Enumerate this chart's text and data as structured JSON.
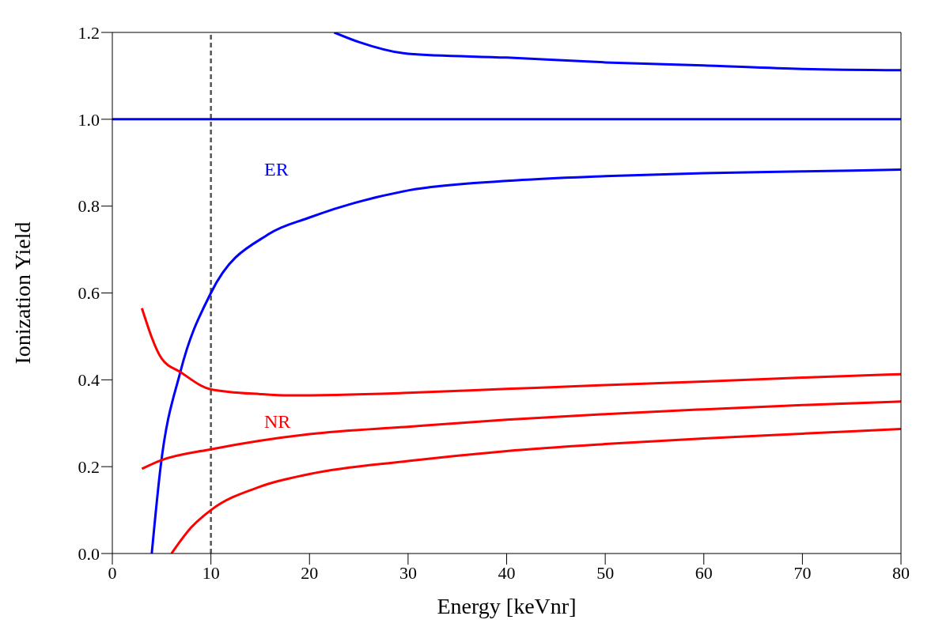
{
  "chart_data": {
    "type": "line",
    "xlabel": "Energy [keVnr]",
    "ylabel": "Ionization Yield",
    "xlim": [
      0,
      80
    ],
    "ylim": [
      0,
      1.2
    ],
    "xticks": [
      0,
      10,
      20,
      30,
      40,
      50,
      60,
      70,
      80
    ],
    "yticks": [
      {
        "value": 0,
        "label": "0.0"
      },
      {
        "value": 0.2,
        "label": "0.2"
      },
      {
        "value": 0.4,
        "label": "0.4"
      },
      {
        "value": 0.6,
        "label": "0.6"
      },
      {
        "value": 0.8,
        "label": "0.8"
      },
      {
        "value": 1,
        "label": "1.0"
      },
      {
        "value": 1.2,
        "label": "1.2"
      }
    ],
    "grid": false,
    "marker": "none",
    "line_style": "solid",
    "series": [
      {
        "color": "#0000ff",
        "x": [
          22.5,
          25,
          30,
          40,
          50,
          60,
          70,
          80
        ],
        "values": [
          1.2,
          1.178,
          1.151,
          1.142,
          1.131,
          1.124,
          1.116,
          1.113
        ]
      },
      {
        "color": "#0000ff",
        "x": [
          0,
          80
        ],
        "values": [
          1.0,
          1.0
        ]
      },
      {
        "color": "#0000ff",
        "x": [
          4,
          4.9,
          6.9,
          10,
          15.9,
          19.9,
          30,
          40,
          50,
          60,
          70,
          80
        ],
        "values": [
          0,
          0.2,
          0.418,
          0.6,
          0.736,
          0.773,
          0.836,
          0.858,
          0.869,
          0.876,
          0.88,
          0.884
        ]
      },
      {
        "color": "#ff0000",
        "x": [
          3,
          5,
          6.9,
          10,
          15,
          18,
          30,
          40,
          50,
          60,
          70,
          80
        ],
        "values": [
          0.565,
          0.449,
          0.418,
          0.378,
          0.367,
          0.364,
          0.37,
          0.379,
          0.388,
          0.396,
          0.405,
          0.413
        ]
      },
      {
        "color": "#ff0000",
        "x": [
          3,
          5,
          10,
          20,
          30,
          40,
          50,
          60,
          70,
          80
        ],
        "values": [
          0.195,
          0.215,
          0.24,
          0.275,
          0.292,
          0.308,
          0.321,
          0.332,
          0.342,
          0.35
        ]
      },
      {
        "color": "#ff0000",
        "x": [
          6,
          8,
          10,
          15,
          20,
          30,
          40,
          50,
          60,
          70,
          80
        ],
        "values": [
          0,
          0.06,
          0.1,
          0.154,
          0.183,
          0.213,
          0.236,
          0.252,
          0.265,
          0.276,
          0.287
        ]
      }
    ],
    "ref_lines": [
      {
        "axis": "x",
        "value": 10,
        "color": "#555555",
        "line_style": "dashed"
      }
    ],
    "annotations": [
      "ER",
      "NR"
    ]
  }
}
